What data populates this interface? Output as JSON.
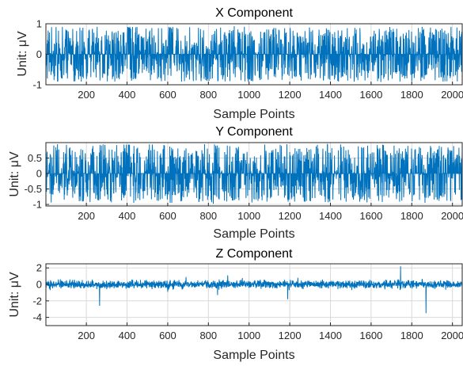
{
  "chart_data": [
    {
      "type": "line",
      "title": "X Component",
      "xlabel": "Sample Points",
      "ylabel": "Unit:  μV",
      "xlim": [
        1,
        2048
      ],
      "ylim": [
        -1,
        1
      ],
      "xticks": [
        200,
        400,
        600,
        800,
        1000,
        1200,
        1400,
        1600,
        1800,
        2000
      ],
      "yticks": [
        -1,
        0,
        1
      ],
      "ytick_labels": [
        "-1",
        "0",
        "1"
      ],
      "grid": true,
      "color": "#0072bd",
      "n_points": 2048,
      "amplitude": 0.9,
      "noise_mode": "uniform",
      "series": [
        {
          "values": [
            0.0,
            0.78,
            -0.62,
            0.45,
            0.0,
            -0.85,
            0.71,
            0.0,
            -0.33,
            0.92,
            -0.7,
            0.0,
            0.54,
            -0.48,
            0.0,
            0.86,
            -0.91,
            0.0,
            0.39,
            -0.6
          ]
        }
      ]
    },
    {
      "type": "line",
      "title": "Y Component",
      "xlabel": "Sample Points",
      "ylabel": "Unit:  μV",
      "xlim": [
        1,
        2048
      ],
      "ylim": [
        -1.05,
        1.0
      ],
      "xticks": [
        200,
        400,
        600,
        800,
        1000,
        1200,
        1400,
        1600,
        1800,
        2000
      ],
      "yticks": [
        -1,
        -0.5,
        0,
        0.5
      ],
      "ytick_labels": [
        "-1",
        "-0.5",
        "0",
        "0.5"
      ],
      "grid": true,
      "color": "#0072bd",
      "n_points": 2048,
      "amplitude": 0.95,
      "noise_mode": "uniform",
      "series": [
        {
          "values": [
            0.0,
            0.58,
            -0.75,
            0.0,
            0.93,
            -0.41,
            0.0,
            0.66,
            -0.98,
            0.0,
            0.35,
            -0.52,
            0.0,
            0.81,
            -0.67,
            0.0,
            0.47,
            -0.88,
            0.0,
            0.6
          ]
        }
      ]
    },
    {
      "type": "line",
      "title": "Z Component",
      "xlabel": "Sample Points",
      "ylabel": "Unit:  μV",
      "xlim": [
        1,
        2048
      ],
      "ylim": [
        -5,
        2.5
      ],
      "xticks": [
        200,
        400,
        600,
        800,
        1000,
        1200,
        1400,
        1600,
        1800,
        2000
      ],
      "yticks": [
        -4,
        -2,
        0,
        2
      ],
      "ytick_labels": [
        "-4",
        "-2",
        "0",
        "2"
      ],
      "grid": true,
      "color": "#0072bd",
      "n_points": 2048,
      "amplitude": 0.45,
      "noise_mode": "gaussian",
      "spikes": [
        {
          "x": 265,
          "y": -2.6
        },
        {
          "x": 600,
          "y": -0.9
        },
        {
          "x": 690,
          "y": 0.9
        },
        {
          "x": 845,
          "y": -1.3
        },
        {
          "x": 895,
          "y": 1.1
        },
        {
          "x": 1190,
          "y": -1.8
        },
        {
          "x": 1240,
          "y": 0.8
        },
        {
          "x": 1745,
          "y": 2.2
        },
        {
          "x": 1870,
          "y": -3.5
        }
      ],
      "series": [
        {
          "values": [
            0.0,
            0.35,
            -0.28,
            0.12,
            -0.4,
            0.22,
            0.0,
            -0.31,
            0.44,
            -0.15,
            0.27,
            -0.38,
            0.09,
            0.33,
            -0.2,
            0.41,
            -0.36,
            0.18,
            -0.1,
            0.25
          ]
        }
      ]
    }
  ]
}
